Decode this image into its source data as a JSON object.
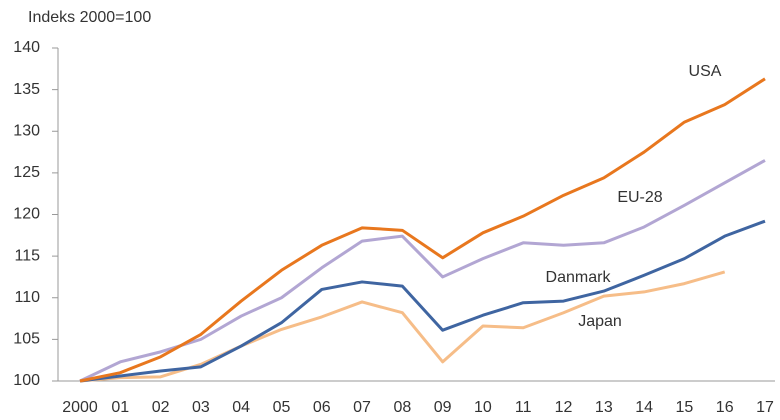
{
  "chart_data": {
    "type": "line",
    "y_label": "Indeks 2000=100",
    "categories": [
      "2000",
      "01",
      "02",
      "03",
      "04",
      "05",
      "06",
      "07",
      "08",
      "09",
      "10",
      "11",
      "12",
      "13",
      "14",
      "15",
      "16",
      "17"
    ],
    "series": [
      {
        "name": "USA",
        "color": "#e8771e",
        "values": [
          100,
          101,
          102.9,
          105.6,
          109.6,
          113.3,
          116.3,
          118.4,
          118.1,
          114.8,
          117.8,
          119.8,
          122.3,
          124.4,
          127.5,
          131.1,
          133.2,
          136.3
        ]
      },
      {
        "name": "EU-28",
        "color": "#b2a6d3",
        "values": [
          100,
          102.3,
          103.5,
          105.0,
          107.8,
          110,
          113.6,
          116.8,
          117.4,
          112.5,
          114.7,
          116.6,
          116.3,
          116.6,
          118.5,
          121.1,
          123.8,
          126.5
        ]
      },
      {
        "name": "Danmark",
        "color": "#3f65a1",
        "values": [
          100,
          100.6,
          101.2,
          101.7,
          104.2,
          107,
          111,
          111.9,
          111.4,
          106.1,
          107.9,
          109.4,
          109.6,
          110.8,
          112.7,
          114.7,
          117.4,
          119.2
        ]
      },
      {
        "name": "Japan",
        "color": "#f6bd88",
        "values": [
          100,
          100.4,
          100.5,
          102,
          104.2,
          106.2,
          107.7,
          109.5,
          108.2,
          102.3,
          106.6,
          106.4,
          108.2,
          110.2,
          110.7,
          111.7,
          113.1,
          null
        ]
      }
    ],
    "ylim": [
      100,
      140
    ],
    "yticks": [
      100,
      105,
      110,
      115,
      120,
      125,
      130,
      135,
      140
    ],
    "grid": false
  }
}
